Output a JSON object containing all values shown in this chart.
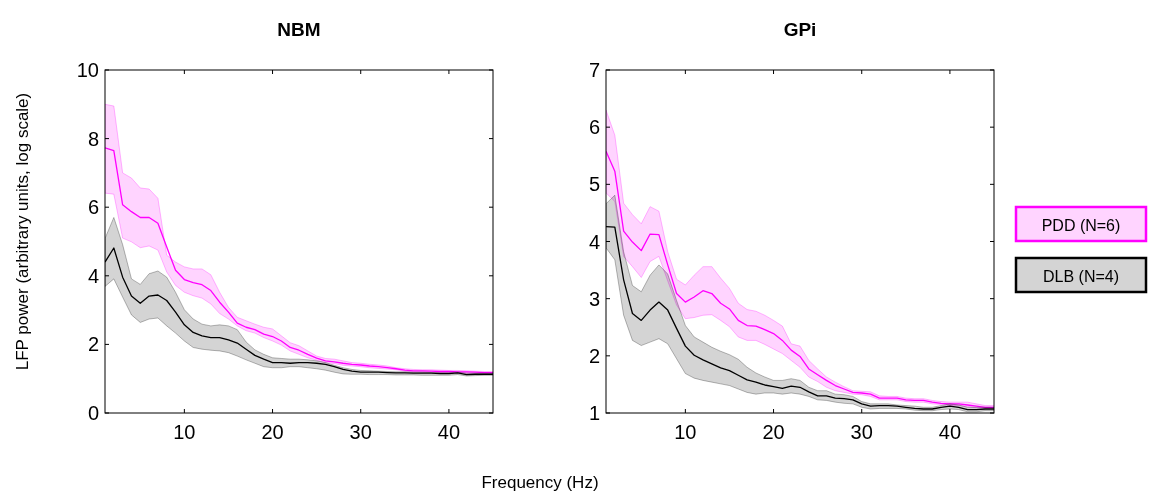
{
  "chart_data": [
    {
      "type": "line",
      "title": "NBM",
      "xlabel": "Frequency (Hz)",
      "ylabel": "LFP power (arbitrary units, log scale)",
      "x": [
        1,
        2,
        3,
        4,
        5,
        6,
        7,
        8,
        9,
        10,
        11,
        12,
        13,
        14,
        15,
        16,
        17,
        18,
        19,
        20,
        21,
        22,
        23,
        24,
        25,
        26,
        27,
        28,
        29,
        30,
        31,
        32,
        33,
        34,
        35,
        36,
        37,
        38,
        39,
        40,
        41,
        42,
        43,
        44,
        45
      ],
      "xlim": [
        1,
        45
      ],
      "xticks": [
        10,
        20,
        30,
        40
      ],
      "ylim": [
        0,
        10
      ],
      "yticks": [
        0,
        2,
        4,
        6,
        8,
        10
      ],
      "grid": false,
      "series": [
        {
          "color": "#ff00ff",
          "values": [
            7.73,
            7.65,
            6.07,
            5.87,
            5.7,
            5.7,
            5.53,
            4.84,
            4.16,
            3.89,
            3.8,
            3.74,
            3.57,
            3.23,
            2.94,
            2.62,
            2.5,
            2.43,
            2.3,
            2.23,
            2.1,
            1.91,
            1.83,
            1.71,
            1.6,
            1.52,
            1.49,
            1.45,
            1.42,
            1.4,
            1.37,
            1.35,
            1.32,
            1.29,
            1.25,
            1.23,
            1.23,
            1.22,
            1.21,
            1.21,
            1.2,
            1.2,
            1.19,
            1.18,
            1.18
          ],
          "upper": [
            9.0,
            8.95,
            7.0,
            6.85,
            6.56,
            6.53,
            6.26,
            4.6,
            4.4,
            4.26,
            4.2,
            4.2,
            4.03,
            3.52,
            3.08,
            2.79,
            2.69,
            2.59,
            2.5,
            2.45,
            2.25,
            2.05,
            1.96,
            1.81,
            1.66,
            1.59,
            1.57,
            1.52,
            1.47,
            1.45,
            1.42,
            1.4,
            1.37,
            1.32,
            1.29,
            1.27,
            1.26,
            1.26,
            1.25,
            1.24,
            1.24,
            1.23,
            1.22,
            1.21,
            1.21
          ],
          "lower": [
            6.41,
            6.38,
            5.1,
            4.99,
            4.82,
            4.87,
            4.75,
            4.11,
            3.72,
            3.52,
            3.42,
            3.35,
            3.18,
            2.9,
            2.74,
            2.54,
            2.4,
            2.33,
            2.2,
            2.1,
            1.98,
            1.81,
            1.71,
            1.61,
            1.54,
            1.47,
            1.44,
            1.39,
            1.37,
            1.35,
            1.32,
            1.3,
            1.28,
            1.26,
            1.22,
            1.2,
            1.19,
            1.19,
            1.18,
            1.17,
            1.17,
            1.16,
            1.15,
            1.15,
            1.15
          ]
        },
        {
          "color": "#000000",
          "values": [
            4.4,
            4.81,
            3.96,
            3.41,
            3.2,
            3.41,
            3.44,
            3.28,
            2.94,
            2.57,
            2.35,
            2.25,
            2.2,
            2.2,
            2.13,
            2.04,
            1.86,
            1.68,
            1.57,
            1.47,
            1.47,
            1.45,
            1.47,
            1.47,
            1.45,
            1.42,
            1.35,
            1.27,
            1.22,
            1.19,
            1.19,
            1.19,
            1.18,
            1.17,
            1.17,
            1.16,
            1.16,
            1.16,
            1.15,
            1.15,
            1.17,
            1.12,
            1.13,
            1.13,
            1.13
          ],
          "upper": [
            5.09,
            5.7,
            4.91,
            3.91,
            3.75,
            4.06,
            4.14,
            3.96,
            3.52,
            3.01,
            2.74,
            2.59,
            2.54,
            2.57,
            2.54,
            2.43,
            2.07,
            1.84,
            1.71,
            1.61,
            1.59,
            1.57,
            1.57,
            1.55,
            1.52,
            1.47,
            1.39,
            1.32,
            1.27,
            1.24,
            1.23,
            1.22,
            1.21,
            1.2,
            1.2,
            1.19,
            1.19,
            1.18,
            1.18,
            1.18,
            1.19,
            1.16,
            1.16,
            1.16,
            1.16
          ],
          "lower": [
            3.69,
            3.91,
            3.38,
            2.86,
            2.64,
            2.74,
            2.77,
            2.54,
            2.33,
            2.1,
            1.91,
            1.86,
            1.83,
            1.81,
            1.76,
            1.66,
            1.55,
            1.45,
            1.35,
            1.32,
            1.32,
            1.35,
            1.35,
            1.32,
            1.29,
            1.25,
            1.19,
            1.14,
            1.13,
            1.13,
            1.12,
            1.12,
            1.12,
            1.11,
            1.11,
            1.11,
            1.1,
            1.1,
            1.1,
            1.1,
            1.12,
            1.08,
            1.09,
            1.1,
            1.1
          ]
        }
      ]
    },
    {
      "type": "line",
      "title": "GPi",
      "x": [
        1,
        2,
        3,
        4,
        5,
        6,
        7,
        8,
        9,
        10,
        11,
        12,
        13,
        14,
        15,
        16,
        17,
        18,
        19,
        20,
        21,
        22,
        23,
        24,
        25,
        26,
        27,
        28,
        29,
        30,
        31,
        32,
        33,
        34,
        35,
        36,
        37,
        38,
        39,
        40,
        41,
        42,
        43,
        44,
        45
      ],
      "xlim": [
        1,
        45
      ],
      "xticks": [
        10,
        20,
        30,
        40
      ],
      "ylim": [
        1,
        7
      ],
      "yticks": [
        1,
        2,
        3,
        4,
        5,
        6,
        7
      ],
      "grid": false,
      "legend": "right",
      "series": [
        {
          "name": "PDD (N=6)",
          "color": "#ff00ff",
          "values": [
            5.58,
            5.23,
            4.18,
            3.99,
            3.84,
            4.13,
            4.12,
            3.59,
            3.09,
            2.94,
            3.03,
            3.14,
            3.09,
            2.92,
            2.82,
            2.62,
            2.53,
            2.52,
            2.46,
            2.39,
            2.27,
            2.1,
            1.99,
            1.77,
            1.67,
            1.57,
            1.48,
            1.42,
            1.36,
            1.35,
            1.33,
            1.26,
            1.26,
            1.26,
            1.23,
            1.22,
            1.22,
            1.19,
            1.17,
            1.16,
            1.16,
            1.14,
            1.12,
            1.1,
            1.1
          ],
          "upper": [
            6.3,
            5.86,
            4.67,
            4.47,
            4.31,
            4.61,
            4.53,
            3.82,
            3.34,
            3.24,
            3.41,
            3.56,
            3.56,
            3.36,
            3.18,
            2.92,
            2.81,
            2.78,
            2.71,
            2.62,
            2.52,
            2.21,
            2.17,
            1.92,
            1.77,
            1.63,
            1.54,
            1.46,
            1.39,
            1.38,
            1.37,
            1.3,
            1.29,
            1.29,
            1.26,
            1.25,
            1.25,
            1.22,
            1.2,
            1.19,
            1.19,
            1.19,
            1.16,
            1.13,
            1.13
          ],
          "lower": [
            4.85,
            4.7,
            3.74,
            3.56,
            3.37,
            3.65,
            3.74,
            3.31,
            2.89,
            2.65,
            2.67,
            2.71,
            2.72,
            2.62,
            2.51,
            2.33,
            2.27,
            2.27,
            2.2,
            2.12,
            2.04,
            1.92,
            1.8,
            1.63,
            1.55,
            1.45,
            1.39,
            1.36,
            1.33,
            1.32,
            1.29,
            1.23,
            1.23,
            1.23,
            1.2,
            1.19,
            1.19,
            1.16,
            1.15,
            1.13,
            1.13,
            1.11,
            1.09,
            1.08,
            1.08
          ]
        },
        {
          "name": "DLB (N=4)",
          "color": "#000000",
          "values": [
            4.26,
            4.25,
            3.33,
            2.74,
            2.62,
            2.8,
            2.94,
            2.8,
            2.48,
            2.17,
            2.01,
            1.93,
            1.86,
            1.79,
            1.74,
            1.66,
            1.58,
            1.54,
            1.49,
            1.46,
            1.43,
            1.47,
            1.45,
            1.37,
            1.3,
            1.3,
            1.26,
            1.25,
            1.23,
            1.16,
            1.12,
            1.13,
            1.13,
            1.12,
            1.1,
            1.08,
            1.07,
            1.07,
            1.1,
            1.12,
            1.1,
            1.06,
            1.06,
            1.07,
            1.07
          ],
          "upper": [
            4.66,
            4.81,
            3.82,
            3.23,
            3.12,
            3.41,
            3.59,
            3.43,
            2.97,
            2.53,
            2.33,
            2.24,
            2.15,
            2.08,
            2.02,
            1.94,
            1.8,
            1.7,
            1.63,
            1.57,
            1.57,
            1.6,
            1.57,
            1.45,
            1.39,
            1.39,
            1.33,
            1.32,
            1.29,
            1.2,
            1.16,
            1.16,
            1.16,
            1.14,
            1.13,
            1.12,
            1.1,
            1.1,
            1.13,
            1.16,
            1.14,
            1.1,
            1.1,
            1.1,
            1.1
          ],
          "lower": [
            3.89,
            3.68,
            2.71,
            2.27,
            2.18,
            2.24,
            2.3,
            2.21,
            1.95,
            1.69,
            1.61,
            1.57,
            1.54,
            1.51,
            1.48,
            1.42,
            1.36,
            1.33,
            1.35,
            1.35,
            1.33,
            1.35,
            1.33,
            1.29,
            1.23,
            1.22,
            1.19,
            1.17,
            1.16,
            1.1,
            1.07,
            1.08,
            1.08,
            1.08,
            1.07,
            1.05,
            1.04,
            1.04,
            1.06,
            1.07,
            1.06,
            1.02,
            1.02,
            1.04,
            1.04
          ]
        }
      ]
    }
  ]
}
